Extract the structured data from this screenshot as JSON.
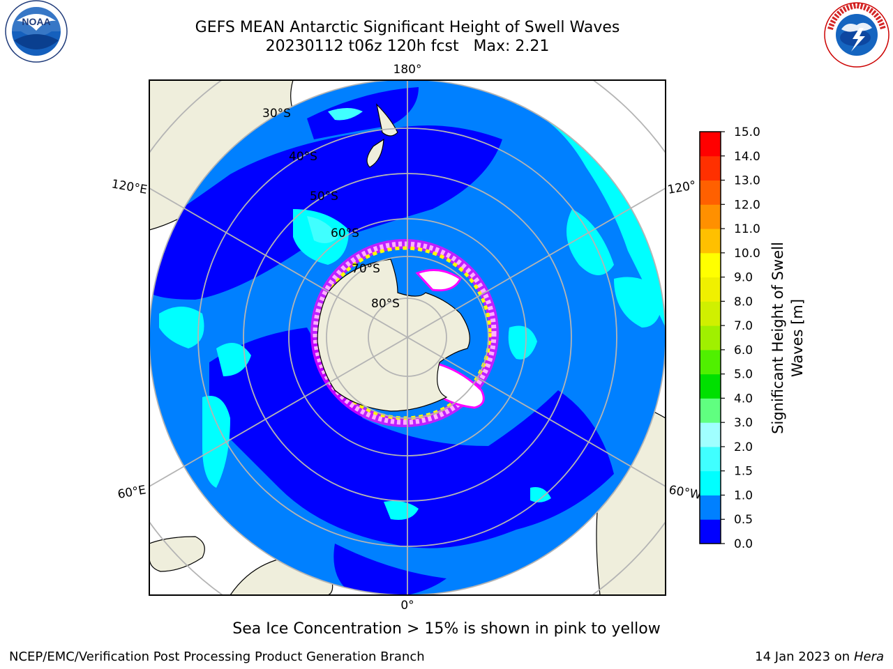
{
  "header": {
    "title_line1": "GEFS MEAN Antarctic Significant Height of Swell Waves",
    "title_line2": "20230112 t06z 120h fcst   Max: 2.21"
  },
  "logos": {
    "noaa_text": "NOAA",
    "noaa_ring": "NATIONAL OCEANIC AND ATMOSPHERIC ADMINISTRATION · U.S. DEPARTMENT OF COMMERCE",
    "nws_ring": "NATIONAL WEATHER SERVICE"
  },
  "map": {
    "projection": "south polar stereographic",
    "lon_labels": {
      "top": "180°",
      "bottom": "0°",
      "upper_left": "120°E",
      "lower_left": "60°E",
      "upper_right": "120°",
      "lower_right": "60°W"
    },
    "lat_labels": [
      "30°S",
      "40°S",
      "50°S",
      "60°S",
      "70°S",
      "80°S"
    ],
    "colors": {
      "ocean_low": "#0000ff",
      "ocean_mid": "#0080ff",
      "ocean_high": "#00ffff",
      "land": "#efeedc",
      "grid": "#b4b4b4",
      "ice": [
        "#ff00ff",
        "#ffb0ff",
        "#ffff00",
        "#ffffff"
      ]
    }
  },
  "colorbar": {
    "label_line1": "Significant Height of Swell",
    "label_line2": "Waves [m]",
    "ticks": [
      "0.0",
      "0.5",
      "1.0",
      "1.5",
      "2.0",
      "3.0",
      "4.0",
      "5.0",
      "6.0",
      "7.0",
      "8.0",
      "9.0",
      "10.0",
      "11.0",
      "12.0",
      "13.0",
      "14.0",
      "15.0"
    ],
    "colors": [
      "#0000ff",
      "#0080ff",
      "#00ffff",
      "#40ffff",
      "#a0ffff",
      "#60ff80",
      "#00e000",
      "#50f000",
      "#a0f000",
      "#d0f000",
      "#f0f000",
      "#ffff00",
      "#ffc000",
      "#ff9000",
      "#ff6000",
      "#ff3000",
      "#ff0000"
    ]
  },
  "footer": {
    "note": "Sea Ice Concentration > 15% is shown in pink to yellow",
    "credit": "NCEP/EMC/Verification Post Processing Product Generation Branch",
    "date_prefix": "14 Jan 2023 on ",
    "date_machine": "Hera"
  }
}
